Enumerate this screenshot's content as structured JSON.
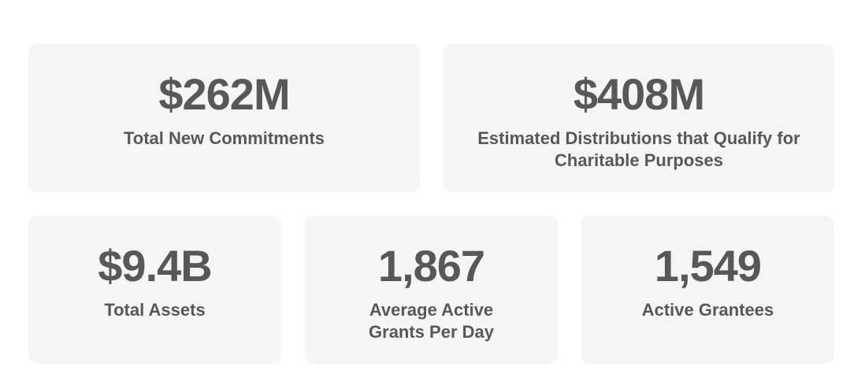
{
  "stats": [
    {
      "value": "$262M",
      "label": "Total New Commitments"
    },
    {
      "value": "$408M",
      "label": "Estimated Distributions that Qualify for Charitable Purposes"
    },
    {
      "value": "$9.4B",
      "label": "Total Assets"
    },
    {
      "value": "1,867",
      "label": "Average Active Grants Per Day"
    },
    {
      "value": "1,549",
      "label": "Active Grantees"
    }
  ],
  "colors": {
    "card_background": "#f5f5f5",
    "text": "#58585a",
    "page_background": "#ffffff"
  }
}
